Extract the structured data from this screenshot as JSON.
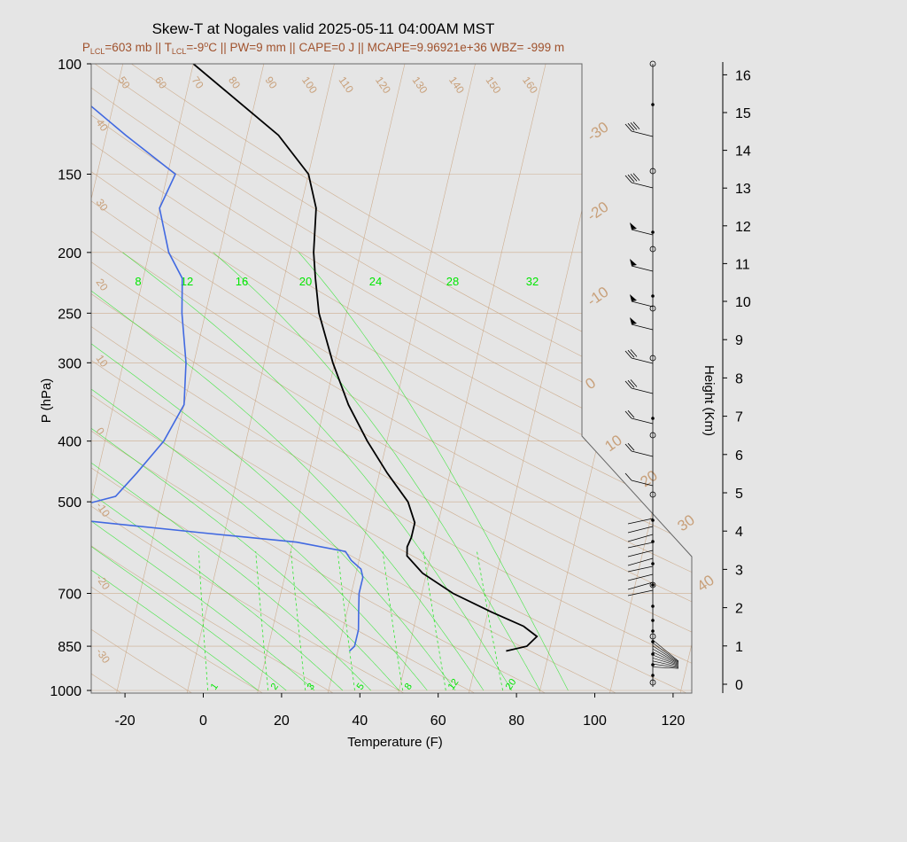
{
  "header": {
    "title": "Skew-T at Nogales valid 2025-05-11 04:00AM MST",
    "subtitle_parts": {
      "p": "P",
      "lcl1": "LCL",
      "p_val": "=603 mb || T",
      "lcl2": "LCL",
      "t_val": "=-9",
      "deg": "o",
      "rest": "C || PW=9 mm || CAPE=0 J || MCAPE=9.96921e+36 WBZ= -999 m"
    }
  },
  "axes": {
    "xlabel": "Temperature (F)",
    "ylabel": "P (hPa)",
    "y2label": "Height (Km)"
  },
  "colors": {
    "temperature": "#000000",
    "dewpoint": "#4169e1",
    "grid": "#c8a07a",
    "mixing_ratio": "#00e600",
    "background": "#e5e5e5"
  },
  "chart_data": {
    "type": "line",
    "title": "Skew-T at Nogales valid 2025-05-11 04:00AM MST",
    "xlabel": "Temperature (F)",
    "ylabel": "P (hPa)",
    "y2label": "Height (Km)",
    "x_ticks": [
      "-20",
      "0",
      "20",
      "40",
      "60",
      "80",
      "100",
      "120"
    ],
    "y_ticks": [
      "100",
      "150",
      "200",
      "250",
      "300",
      "400",
      "500",
      "700",
      "850",
      "1000"
    ],
    "y2_ticks": [
      "0",
      "1",
      "2",
      "3",
      "4",
      "5",
      "6",
      "7",
      "8",
      "9",
      "10",
      "11",
      "12",
      "13",
      "14",
      "15",
      "16"
    ],
    "isotherm_labels": [
      "-30",
      "-20",
      "-10",
      "0",
      "10",
      "20",
      "30",
      "40"
    ],
    "dry_adiabat_labels": [
      "50",
      "60",
      "70",
      "80",
      "90",
      "100",
      "110",
      "120",
      "130",
      "140",
      "150",
      "160"
    ],
    "dry_adiabat_left_labels": [
      "40",
      "30",
      "20",
      "10",
      "0",
      "-10",
      "-20",
      "-30"
    ],
    "moist_adiabat_labels": [
      "8",
      "12",
      "16",
      "20",
      "24",
      "28",
      "32"
    ],
    "mixing_ratio_labels": [
      "1",
      "2",
      "3",
      "5",
      "8",
      "12",
      "20"
    ],
    "series": [
      {
        "name": "temperature",
        "p": [
          865,
          850,
          820,
          790,
          750,
          700,
          650,
          610,
          590,
          570,
          540,
          500,
          450,
          400,
          350,
          300,
          250,
          220,
          200,
          170,
          150,
          130,
          100
        ],
        "t_f": [
          75,
          80,
          82,
          78,
          69,
          58,
          49,
          44,
          43.5,
          44,
          44,
          41,
          34,
          27,
          20,
          13.5,
          7,
          4,
          2,
          0,
          -4,
          -14,
          -40
        ]
      },
      {
        "name": "dewpoint",
        "p": [
          865,
          850,
          800,
          750,
          700,
          680,
          660,
          640,
          620,
          600,
          580,
          560,
          530,
          510,
          490,
          450,
          400,
          350,
          300,
          250,
          220,
          200,
          170,
          150,
          130,
          100
        ],
        "td_f": [
          35,
          36,
          36,
          35,
          34,
          34,
          34,
          33,
          30,
          28,
          15,
          -10,
          -48,
          -44,
          -34,
          -30,
          -25,
          -22,
          -24,
          -28,
          -30,
          -35,
          -40,
          -38,
          -53,
          -79
        ]
      }
    ]
  }
}
